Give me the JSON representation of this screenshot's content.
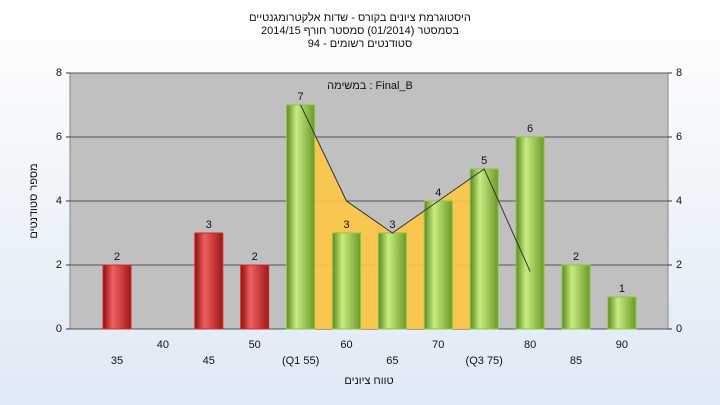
{
  "chart_data": {
    "type": "bar",
    "title": "היסטוגרמת ציונים בקורס - שדות אלקטרומגנטיים",
    "subtitle": "בסמסטר  (01/2014)  סמסטר חורף 2014/15",
    "subtitle2": "סטודנטים רשומים - 94",
    "annotation": "במשימה : Final_B",
    "x_label": "טווח ציונים",
    "y_label": "מספר סטודנטים",
    "categories": [
      "35",
      "40",
      "45",
      "50",
      "(Q1 55)",
      "60",
      "65",
      "70",
      "(Q3 75)",
      "80",
      "85",
      "90"
    ],
    "values": [
      2,
      null,
      3,
      2,
      7,
      3,
      3,
      4,
      5,
      6,
      2,
      1
    ],
    "colors": [
      "#d42a2a",
      null,
      "#d42a2a",
      "#d42a2a",
      "#8cc63f",
      "#8cc63f",
      "#8cc63f",
      "#8cc63f",
      "#8cc63f",
      "#8cc63f",
      "#8cc63f",
      "#8cc63f"
    ],
    "area": {
      "color": "#ffc844",
      "values": [
        null,
        null,
        null,
        null,
        7,
        4,
        3,
        4,
        5,
        null,
        null,
        null
      ]
    },
    "line": {
      "color": "#333333",
      "values": [
        null,
        null,
        null,
        null,
        7,
        4,
        3,
        4,
        5,
        1.8,
        null,
        null
      ]
    },
    "ylim": [
      0,
      8
    ],
    "yticks": [
      0,
      2,
      4,
      6,
      8
    ],
    "y2lim": [
      0,
      8
    ],
    "y2ticks": [
      0,
      2,
      4,
      6,
      8
    ],
    "grid": true
  }
}
